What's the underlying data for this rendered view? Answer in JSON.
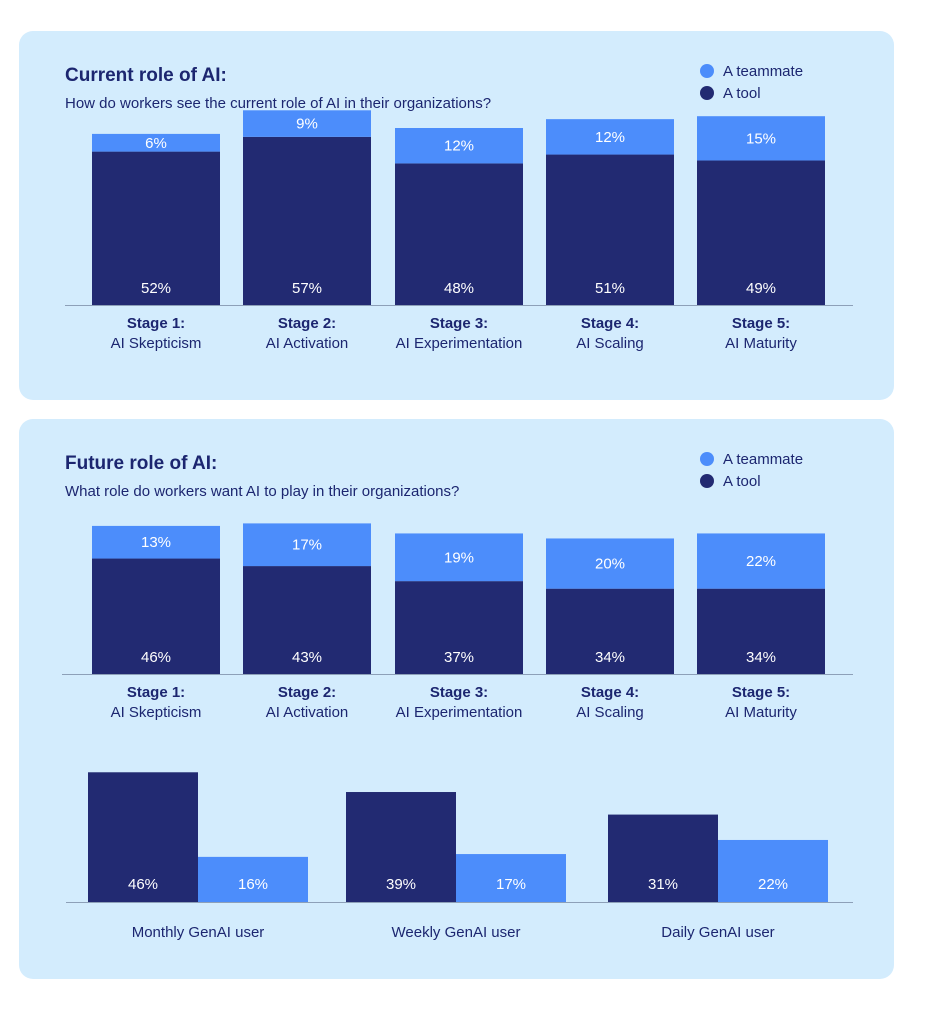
{
  "colors": {
    "tool": "#222a72",
    "teammate": "#4c8dfb",
    "panel": "#d3ecfd",
    "text": "#1c2670",
    "axis": "#8da0b8"
  },
  "legend": [
    {
      "label": "A teammate",
      "color": "#4c8dfb"
    },
    {
      "label": "A tool",
      "color": "#222a72"
    }
  ],
  "panels": [
    {
      "title": "Current role of AI:",
      "subtitle": "How do workers see the current role of AI in their organizations?"
    },
    {
      "title": "Future role of AI:",
      "subtitle": "What role do workers want AI to play in their organizations?"
    }
  ],
  "chart_data": [
    {
      "type": "bar",
      "stacked": true,
      "title": "Current role of AI:",
      "subtitle": "How do workers see the current role of AI in their organizations?",
      "categories": [
        [
          "Stage 1:",
          "AI Skepticism"
        ],
        [
          "Stage 2:",
          "AI Activation"
        ],
        [
          "Stage 3:",
          "AI Experimentation"
        ],
        [
          "Stage 4:",
          "AI Scaling"
        ],
        [
          "Stage 5:",
          "AI Maturity"
        ]
      ],
      "series": [
        {
          "name": "A tool",
          "values": [
            52,
            57,
            48,
            51,
            49
          ]
        },
        {
          "name": "A teammate",
          "values": [
            6,
            9,
            12,
            12,
            15
          ]
        }
      ],
      "legend": "top-right",
      "grid": false
    },
    {
      "type": "bar",
      "stacked": true,
      "title": "Future role of AI:",
      "subtitle": "What role do workers want AI to play in their organizations?",
      "categories": [
        [
          "Stage 1:",
          "AI Skepticism"
        ],
        [
          "Stage 2:",
          "AI Activation"
        ],
        [
          "Stage 3:",
          "AI Experimentation"
        ],
        [
          "Stage 4:",
          "AI Scaling"
        ],
        [
          "Stage 5:",
          "AI Maturity"
        ]
      ],
      "series": [
        {
          "name": "A tool",
          "values": [
            46,
            43,
            37,
            34,
            34
          ]
        },
        {
          "name": "A teammate",
          "values": [
            13,
            17,
            19,
            20,
            22
          ]
        }
      ],
      "legend": "top-right",
      "grid": false
    },
    {
      "type": "bar",
      "stacked": false,
      "categories": [
        "Monthly GenAI user",
        "Weekly GenAI user",
        "Daily GenAI user"
      ],
      "series": [
        {
          "name": "A tool",
          "values": [
            46,
            39,
            31
          ]
        },
        {
          "name": "A teammate",
          "values": [
            16,
            17,
            22
          ]
        }
      ],
      "grid": false
    }
  ]
}
